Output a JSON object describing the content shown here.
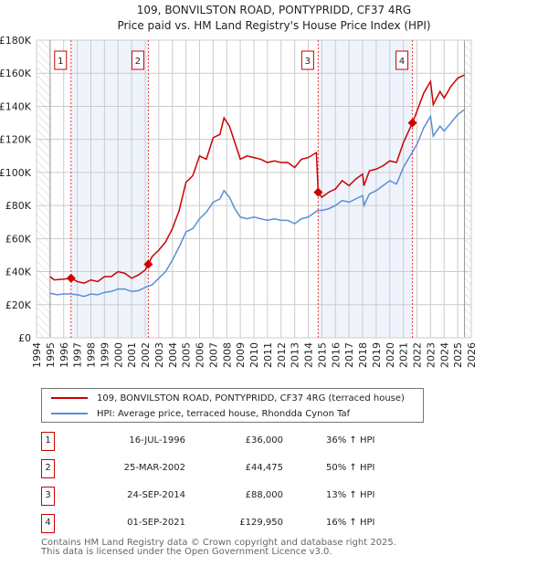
{
  "chart_data": {
    "type": "line",
    "title": "109, BONVILSTON ROAD, PONTYPRIDD, CF37 4RG",
    "subtitle": "Price paid vs. HM Land Registry's House Price Index (HPI)",
    "xlim": [
      1994,
      2026
    ],
    "ylim": [
      0,
      180000
    ],
    "x_ticks": [
      "1994",
      "1995",
      "1996",
      "1997",
      "1998",
      "1999",
      "2000",
      "2001",
      "2002",
      "2003",
      "2004",
      "2005",
      "2006",
      "2007",
      "2008",
      "2009",
      "2010",
      "2011",
      "2012",
      "2013",
      "2014",
      "2015",
      "2016",
      "2017",
      "2018",
      "2019",
      "2020",
      "2021",
      "2022",
      "2023",
      "2024",
      "2025",
      "2026"
    ],
    "y_ticks": [
      {
        "v": 0,
        "label": "£0"
      },
      {
        "v": 20000,
        "label": "£20K"
      },
      {
        "v": 40000,
        "label": "£40K"
      },
      {
        "v": 60000,
        "label": "£60K"
      },
      {
        "v": 80000,
        "label": "£80K"
      },
      {
        "v": 100000,
        "label": "£100K"
      },
      {
        "v": 120000,
        "label": "£120K"
      },
      {
        "v": 140000,
        "label": "£140K"
      },
      {
        "v": 160000,
        "label": "£160K"
      },
      {
        "v": 180000,
        "label": "£180K"
      }
    ],
    "grid": true,
    "shaded_ranges": [
      [
        1996.54,
        2002.23
      ],
      [
        2014.73,
        2021.67
      ]
    ],
    "hatched_ranges": [
      [
        1994,
        1995
      ],
      [
        2025.5,
        2026
      ]
    ],
    "series": [
      {
        "name": "109, BONVILSTON ROAD, PONTYPRIDD, CF37 4RG (terraced house)",
        "color": "#cc0000",
        "x": [
          1995,
          1995.3,
          1996,
          1996.54,
          1997,
          1997.5,
          1998,
          1998.5,
          1999,
          1999.5,
          2000,
          2000.5,
          2001,
          2001.5,
          2002,
          2002.23,
          2002.5,
          2003,
          2003.5,
          2004,
          2004.5,
          2005,
          2005.5,
          2006,
          2006.5,
          2007,
          2007.5,
          2007.8,
          2008.2,
          2008.6,
          2009,
          2009.5,
          2010,
          2010.5,
          2011,
          2011.5,
          2012,
          2012.5,
          2013,
          2013.5,
          2014,
          2014.6,
          2014.73,
          2015,
          2015.5,
          2016,
          2016.5,
          2017,
          2017.5,
          2018,
          2018.1,
          2018.5,
          2019,
          2019.5,
          2020,
          2020.5,
          2021,
          2021.67,
          2022,
          2022.5,
          2023,
          2023.2,
          2023.7,
          2024,
          2024.5,
          2025,
          2025.5
        ],
        "y": [
          37,
          35,
          35.5,
          36,
          34,
          33,
          35,
          34,
          37,
          37,
          40,
          39,
          36,
          38,
          41,
          44.5,
          49,
          53,
          58,
          66,
          77,
          94,
          98,
          110,
          108,
          121,
          123,
          133,
          128,
          118,
          108,
          110,
          109,
          108,
          106,
          107,
          106,
          106,
          103,
          108,
          109,
          112,
          88,
          85,
          88,
          90,
          95,
          92,
          96,
          99,
          92,
          101,
          102,
          104,
          107,
          106,
          118,
          130,
          137,
          148,
          155,
          141,
          149,
          145,
          152,
          157,
          159
        ]
      },
      {
        "name": "HPI: Average price, terraced house, Rhondda Cynon Taf",
        "color": "#5b8fd4",
        "x": [
          1995,
          1995.5,
          1996,
          1996.5,
          1997,
          1997.5,
          1998,
          1998.5,
          1999,
          1999.5,
          2000,
          2000.5,
          2001,
          2001.5,
          2002,
          2002.5,
          2003,
          2003.5,
          2004,
          2004.5,
          2005,
          2005.5,
          2006,
          2006.5,
          2007,
          2007.5,
          2007.8,
          2008.2,
          2008.6,
          2009,
          2009.5,
          2010,
          2010.5,
          2011,
          2011.5,
          2012,
          2012.5,
          2013,
          2013.5,
          2014,
          2014.7,
          2015,
          2015.5,
          2016,
          2016.5,
          2017,
          2017.5,
          2018,
          2018.1,
          2018.5,
          2019,
          2019.5,
          2020,
          2020.5,
          2021,
          2021.5,
          2022,
          2022.5,
          2023,
          2023.2,
          2023.7,
          2024,
          2024.5,
          2025,
          2025.5
        ],
        "y": [
          27,
          26,
          26.5,
          26.5,
          26,
          25,
          26.5,
          26,
          27.5,
          28,
          29.5,
          29.5,
          28,
          28.5,
          30.5,
          32,
          36,
          40,
          47,
          55,
          64,
          66,
          72,
          76,
          82,
          84,
          89,
          85,
          78,
          73,
          72,
          73,
          72,
          71,
          72,
          71,
          71,
          69,
          72,
          73,
          77,
          77,
          78,
          80,
          83,
          82,
          84,
          86,
          80,
          87,
          89,
          92,
          95,
          93,
          103,
          110,
          117,
          127,
          134,
          122,
          128,
          125,
          130,
          135,
          138
        ]
      }
    ],
    "units_note": "y values in £K",
    "sales": [
      {
        "n": "1",
        "x": 1996.54,
        "y": 36000,
        "date": "16-JUL-1996",
        "price": "£36,000",
        "hpi": "36% ↑ HPI"
      },
      {
        "n": "2",
        "x": 2002.23,
        "y": 44475,
        "date": "25-MAR-2002",
        "price": "£44,475",
        "hpi": "50% ↑ HPI"
      },
      {
        "n": "3",
        "x": 2014.73,
        "y": 88000,
        "date": "24-SEP-2014",
        "price": "£88,000",
        "hpi": "13% ↑ HPI"
      },
      {
        "n": "4",
        "x": 2021.67,
        "y": 129950,
        "date": "01-SEP-2021",
        "price": "£129,950",
        "hpi": "16% ↑ HPI"
      }
    ],
    "legend_placement": "below"
  },
  "footer": {
    "line1": "Contains HM Land Registry data © Crown copyright and database right 2025.",
    "line2": "This data is licensed under the Open Government Licence v3.0."
  }
}
